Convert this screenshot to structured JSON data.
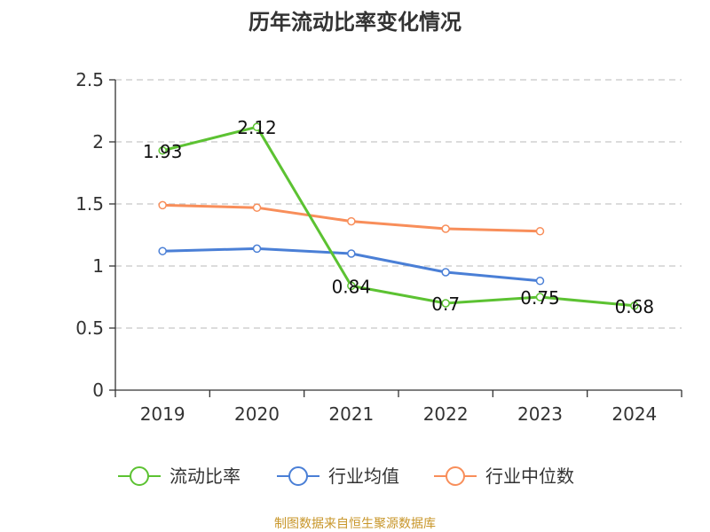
{
  "chart_data": {
    "type": "line",
    "title": "历年流动比率变化情况",
    "categories": [
      "2019",
      "2020",
      "2021",
      "2022",
      "2023",
      "2024"
    ],
    "ylim": [
      0,
      2.5
    ],
    "yticks": [
      0,
      0.5,
      1,
      1.5,
      2,
      2.5
    ],
    "ytick_labels": [
      "0",
      "0.5",
      "1",
      "1.5",
      "2",
      "2.5"
    ],
    "grid": true,
    "legend_position": "bottom",
    "series": [
      {
        "name": "流动比率",
        "color": "#5cc232",
        "values": [
          1.93,
          2.12,
          0.84,
          0.7,
          0.75,
          0.68
        ],
        "labels": [
          "1.93",
          "2.12",
          "0.84",
          "0.7",
          "0.75",
          "0.68"
        ],
        "show_labels": true
      },
      {
        "name": "行业均值",
        "color": "#4a7fd6",
        "values": [
          1.12,
          1.14,
          1.1,
          0.95,
          0.88,
          null
        ],
        "show_labels": false
      },
      {
        "name": "行业中位数",
        "color": "#f88e5a",
        "values": [
          1.49,
          1.47,
          1.36,
          1.3,
          1.28,
          null
        ],
        "show_labels": false
      }
    ]
  },
  "footer": "制图数据来自恒生聚源数据库"
}
